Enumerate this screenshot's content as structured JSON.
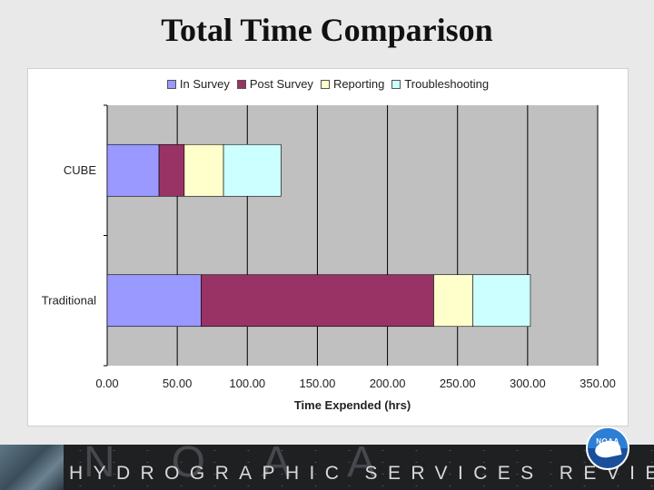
{
  "slide": {
    "title": "Total Time Comparison"
  },
  "footer": {
    "logo_text": "NOAA",
    "noaa_letters": "NOAA",
    "panel_name": "HYDROGRAPHIC SERVICES REVIEW PANEL"
  },
  "chart_data": {
    "type": "bar",
    "orientation": "horizontal",
    "stacked": true,
    "categories": [
      "CUBE",
      "Traditional"
    ],
    "series": [
      {
        "name": "In Survey",
        "values": [
          37,
          67
        ],
        "color": "#9999ff"
      },
      {
        "name": "Post Survey",
        "values": [
          18,
          166
        ],
        "color": "#993366"
      },
      {
        "name": "Reporting",
        "values": [
          28,
          28
        ],
        "color": "#ffffcc"
      },
      {
        "name": "Troubleshooting",
        "values": [
          41,
          41
        ],
        "color": "#ccffff"
      }
    ],
    "xlabel": "Time Expended (hrs)",
    "ylabel": "",
    "xlim": [
      0,
      350
    ],
    "xticks": [
      0,
      50,
      100,
      150,
      200,
      250,
      300,
      350
    ],
    "xtick_labels": [
      "0.00",
      "50.00",
      "100.00",
      "150.00",
      "200.00",
      "250.00",
      "300.00",
      "350.00"
    ],
    "grid": true,
    "legend_position": "top",
    "plot_background": "#c0c0c0"
  }
}
